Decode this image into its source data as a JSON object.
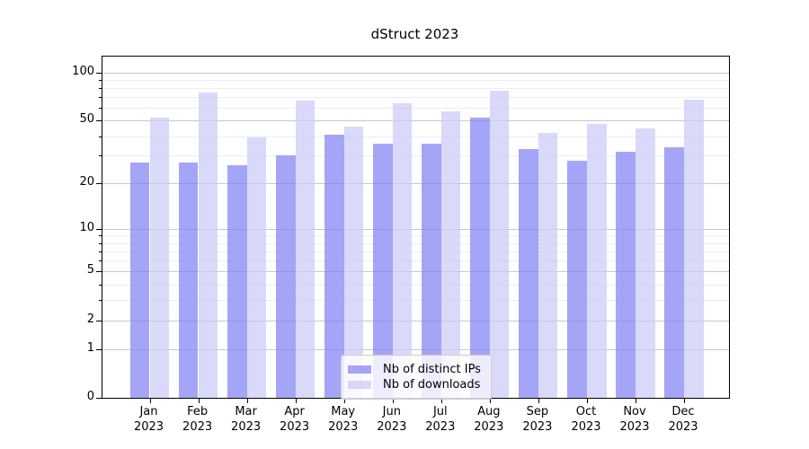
{
  "chart_data": {
    "type": "bar",
    "title": "dStruct 2023",
    "categories": [
      "Jan 2023",
      "Feb 2023",
      "Mar 2023",
      "Apr 2023",
      "May 2023",
      "Jun 2023",
      "Jul 2023",
      "Aug 2023",
      "Sep 2023",
      "Oct 2023",
      "Nov 2023",
      "Dec 2023"
    ],
    "series": [
      {
        "name": "Nb of distinct IPs",
        "color": "rgba(130,130,244,0.72)",
        "values": [
          27,
          27,
          26,
          30,
          41,
          36,
          36,
          52,
          33,
          28,
          32,
          34
        ]
      },
      {
        "name": "Nb of downloads",
        "color": "rgba(202,202,247,0.72)",
        "values": [
          52,
          75,
          39,
          67,
          46,
          64,
          57,
          77,
          42,
          48,
          45,
          68
        ]
      }
    ],
    "xlabel": "",
    "ylabel": "",
    "yscale": "log1p",
    "ylim": [
      0,
      126
    ],
    "y_major_ticks": [
      0,
      1,
      2,
      5,
      10,
      20,
      50,
      100
    ],
    "y_minor_ticks": [
      3,
      4,
      6,
      7,
      8,
      9,
      30,
      40,
      60,
      70,
      80,
      90
    ],
    "grid": "on",
    "legend_position": "lower-center"
  },
  "colors": {
    "bar_distinct_ips_rendered": "#a6a6f6",
    "bar_downloads_rendered": "#d9d9f8",
    "grid_major": "#c8c8c8",
    "grid_minor": "#ededed",
    "axis": "#000000",
    "legend_border": "#cccccc",
    "legend_background": "rgba(255,255,255,0.8)"
  }
}
